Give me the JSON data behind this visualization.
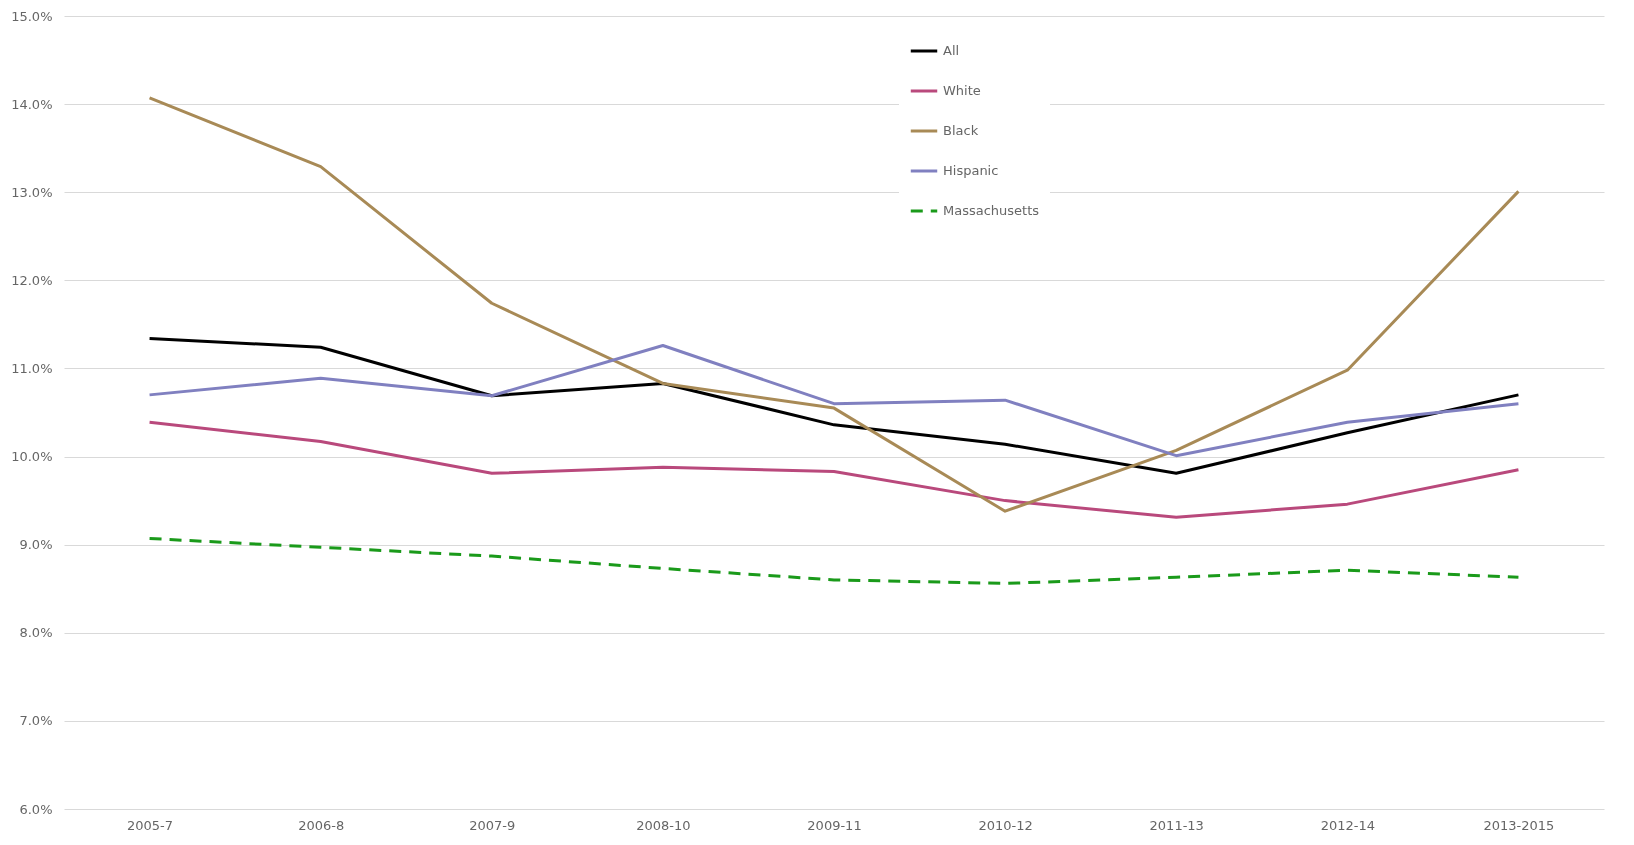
{
  "chart_data": {
    "type": "line",
    "categories": [
      "2005-7",
      "2006-8",
      "2007-9",
      "2008-10",
      "2009-11",
      "2010-12",
      "2011-13",
      "2012-14",
      "2013-2015"
    ],
    "series": [
      {
        "name": "All",
        "color": "#000000",
        "values": [
          11.34,
          11.24,
          10.69,
          10.83,
          10.36,
          10.14,
          9.81,
          10.27,
          10.7
        ]
      },
      {
        "name": "White",
        "color": "#b9497c",
        "values": [
          10.39,
          10.17,
          9.81,
          9.88,
          9.83,
          9.5,
          9.31,
          9.46,
          9.85
        ]
      },
      {
        "name": "Black",
        "color": "#a88a56",
        "values": [
          14.07,
          13.29,
          11.74,
          10.83,
          10.55,
          9.38,
          10.07,
          10.98,
          13.01
        ]
      },
      {
        "name": "Hispanic",
        "color": "#8080c0",
        "values": [
          10.7,
          10.89,
          10.69,
          11.26,
          10.6,
          10.64,
          10.01,
          10.39,
          10.6
        ]
      },
      {
        "name": "Massachusetts",
        "color": "#1a9a1a",
        "line_style": "dashed",
        "values": [
          9.07,
          8.97,
          8.87,
          8.73,
          8.6,
          8.56,
          8.63,
          8.71,
          8.63
        ]
      }
    ],
    "ylim": [
      6,
      15
    ],
    "yticks": [
      {
        "value": 6,
        "label": "6.0%"
      },
      {
        "value": 7,
        "label": "7.0%"
      },
      {
        "value": 8,
        "label": "8.0%"
      },
      {
        "value": 9,
        "label": "9.0%"
      },
      {
        "value": 10,
        "label": "10.0%"
      },
      {
        "value": 11,
        "label": "11.0%"
      },
      {
        "value": 12,
        "label": "12.0%"
      },
      {
        "value": 13,
        "label": "13.0%"
      },
      {
        "value": 14,
        "label": "14.0%"
      },
      {
        "value": 15,
        "label": "15.0%"
      }
    ],
    "grid": "y",
    "legend": "top",
    "line_style": "solid"
  }
}
